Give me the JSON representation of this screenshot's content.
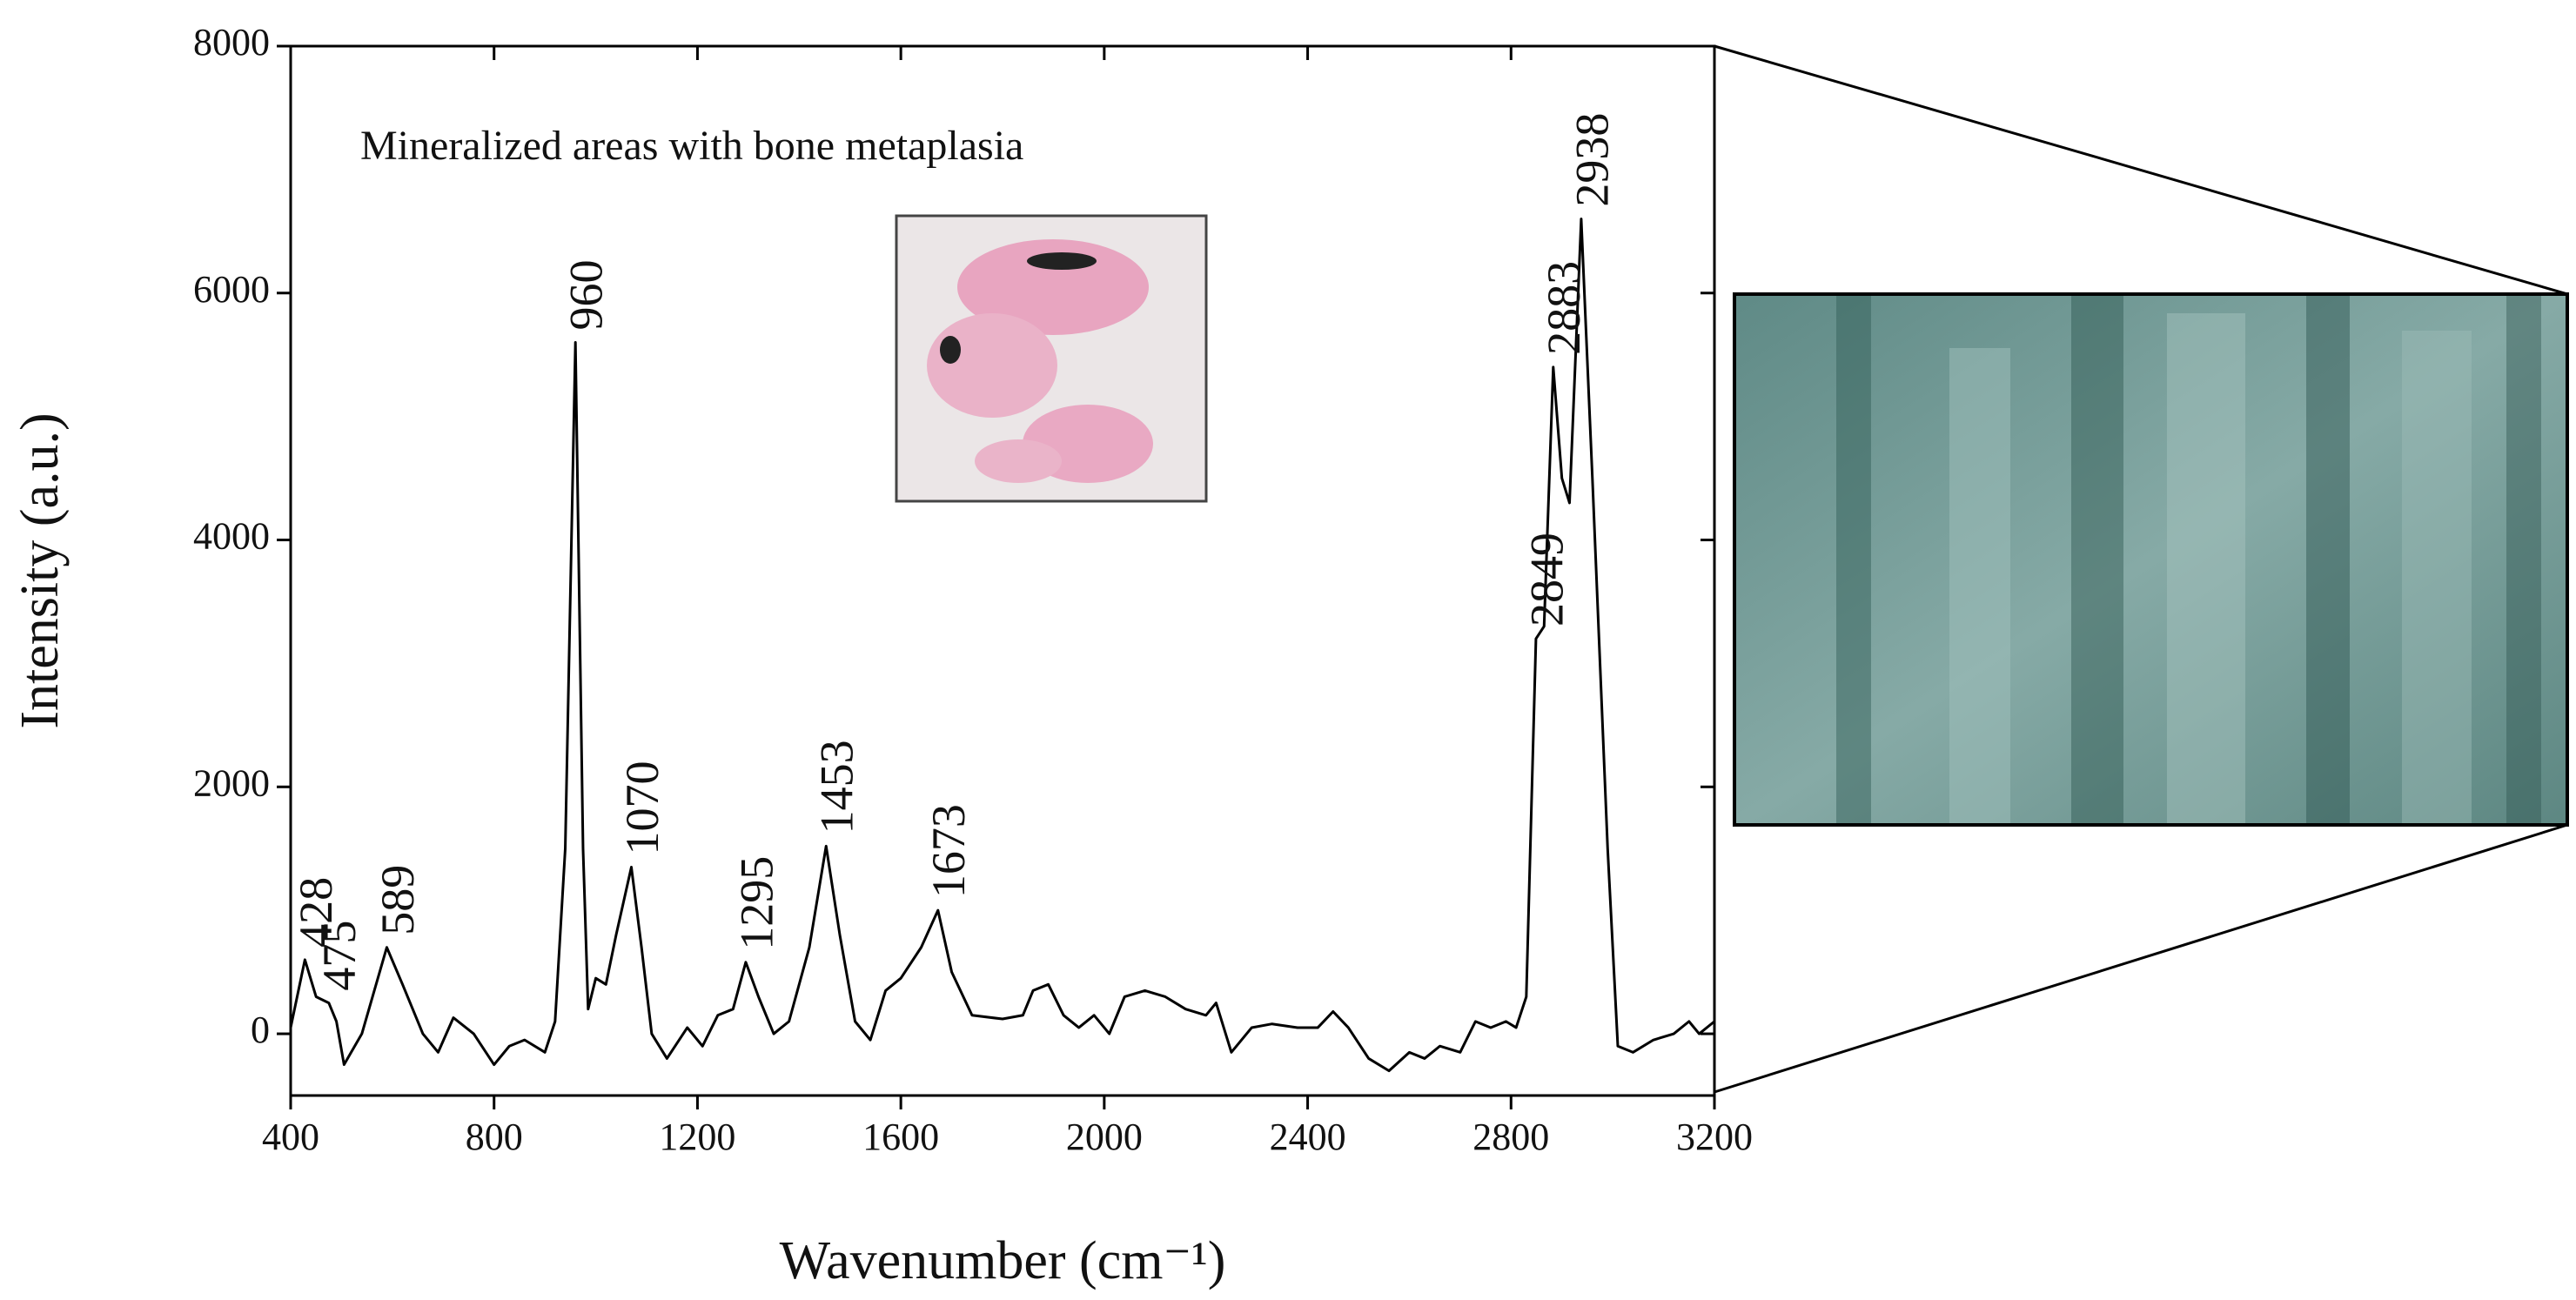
{
  "chart_data": {
    "type": "line",
    "annotation": "Mineralized areas with bone metaplasia",
    "x_label": "Wavenumber (cm⁻¹)",
    "y_label": "Intensity (a.u.)",
    "x": [
      400,
      428,
      450,
      475,
      490,
      505,
      540,
      589,
      620,
      660,
      690,
      720,
      760,
      800,
      830,
      860,
      900,
      920,
      940,
      960,
      975,
      985,
      1000,
      1020,
      1040,
      1070,
      1090,
      1110,
      1140,
      1180,
      1210,
      1240,
      1270,
      1295,
      1320,
      1350,
      1380,
      1420,
      1453,
      1480,
      1510,
      1540,
      1570,
      1600,
      1640,
      1673,
      1700,
      1740,
      1800,
      1840,
      1860,
      1890,
      1920,
      1950,
      1980,
      2010,
      2040,
      2080,
      2120,
      2160,
      2200,
      2220,
      2250,
      2290,
      2330,
      2380,
      2420,
      2450,
      2480,
      2520,
      2560,
      2600,
      2630,
      2660,
      2700,
      2730,
      2760,
      2790,
      2810,
      2830,
      2849,
      2865,
      2883,
      2900,
      2915,
      2938,
      2960,
      2990,
      3010,
      3040,
      3080,
      3120,
      3150,
      3170,
      3200
    ],
    "series": [
      {
        "color": "#000000",
        "values": [
          50,
          600,
          300,
          250,
          100,
          -250,
          0,
          700,
          400,
          0,
          -150,
          130,
          0,
          -250,
          -100,
          -50,
          -150,
          100,
          1500,
          5600,
          1500,
          200,
          450,
          400,
          800,
          1350,
          700,
          0,
          -200,
          50,
          -100,
          150,
          200,
          580,
          300,
          0,
          100,
          700,
          1520,
          800,
          100,
          -50,
          350,
          450,
          700,
          1000,
          500,
          150,
          120,
          150,
          350,
          400,
          150,
          50,
          150,
          0,
          300,
          350,
          300,
          200,
          150,
          250,
          -150,
          50,
          80,
          50,
          50,
          180,
          50,
          -200,
          -300,
          -150,
          -200,
          -100,
          -150,
          100,
          50,
          100,
          50,
          300,
          3200,
          3300,
          5400,
          4500,
          4300,
          6600,
          4500,
          1500,
          -100,
          -150,
          -50,
          0,
          100,
          0,
          100
        ]
      }
    ],
    "peaks": [
      428,
      475,
      589,
      960,
      1070,
      1295,
      1453,
      1673,
      2849,
      2883,
      2938
    ],
    "xlim": [
      400,
      3200
    ],
    "ylim": [
      -500,
      8000
    ],
    "xticks": [
      400,
      800,
      1200,
      1600,
      2000,
      2400,
      2800,
      3200
    ],
    "yticks": [
      0,
      2000,
      4000,
      6000,
      8000
    ]
  }
}
